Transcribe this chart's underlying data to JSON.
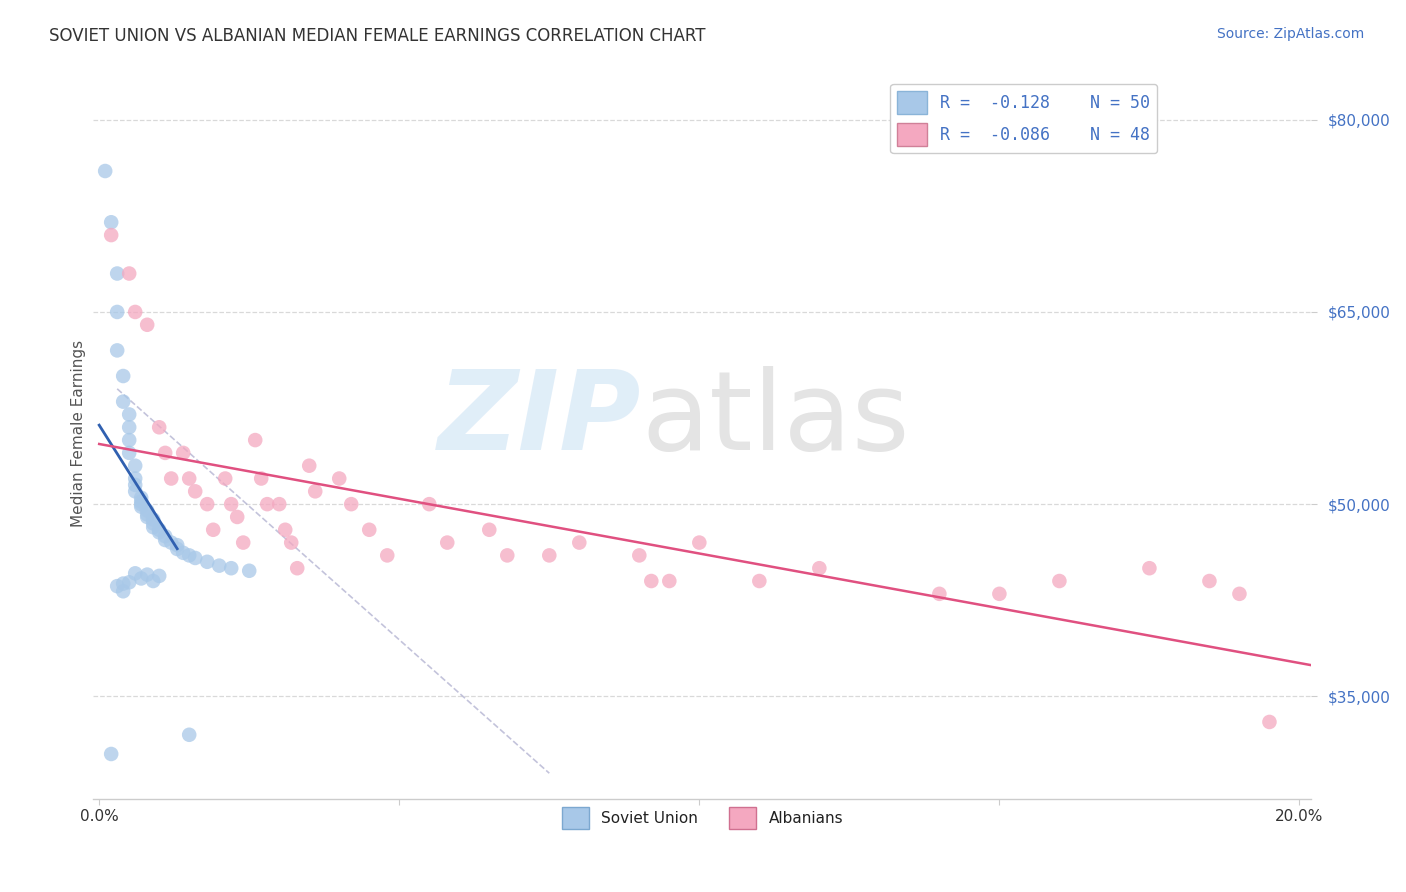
{
  "title": "SOVIET UNION VS ALBANIAN MEDIAN FEMALE EARNINGS CORRELATION CHART",
  "source": "Source: ZipAtlas.com",
  "ylabel": "Median Female Earnings",
  "xlim": [
    -0.001,
    0.202
  ],
  "ylim": [
    27000,
    84000
  ],
  "yticks": [
    35000,
    50000,
    65000,
    80000
  ],
  "ytick_labels": [
    "$35,000",
    "$50,000",
    "$65,000",
    "$80,000"
  ],
  "xticks": [
    0.0,
    0.05,
    0.1,
    0.15,
    0.2
  ],
  "xtick_labels": [
    "0.0%",
    "",
    "",
    "",
    "20.0%"
  ],
  "legend_R": [
    "-0.128",
    "-0.086"
  ],
  "legend_N": [
    "50",
    "48"
  ],
  "soviet_color": "#a8c8e8",
  "albanian_color": "#f4a8c0",
  "soviet_line_color": "#3060b0",
  "albanian_line_color": "#e05080",
  "background_color": "#ffffff",
  "grid_color": "#d0d0d0",
  "soviet_x": [
    0.001,
    0.002,
    0.003,
    0.003,
    0.003,
    0.004,
    0.004,
    0.005,
    0.005,
    0.005,
    0.005,
    0.006,
    0.006,
    0.006,
    0.006,
    0.007,
    0.007,
    0.007,
    0.007,
    0.008,
    0.008,
    0.008,
    0.009,
    0.009,
    0.009,
    0.01,
    0.01,
    0.011,
    0.011,
    0.012,
    0.013,
    0.013,
    0.014,
    0.015,
    0.016,
    0.018,
    0.02,
    0.022,
    0.025,
    0.008,
    0.007,
    0.005,
    0.006,
    0.003,
    0.004,
    0.004,
    0.009,
    0.01,
    0.002,
    0.015
  ],
  "soviet_y": [
    76000,
    72000,
    68000,
    65000,
    62000,
    60000,
    58000,
    57000,
    56000,
    55000,
    54000,
    53000,
    52000,
    51500,
    51000,
    50500,
    50200,
    50000,
    49800,
    49500,
    49200,
    49000,
    48800,
    48500,
    48200,
    48000,
    47800,
    47500,
    47200,
    47000,
    46800,
    46500,
    46200,
    46000,
    45800,
    45500,
    45200,
    45000,
    44800,
    44500,
    44200,
    43900,
    44600,
    43600,
    43200,
    43800,
    44000,
    44400,
    30500,
    32000
  ],
  "albanian_x": [
    0.002,
    0.005,
    0.006,
    0.008,
    0.01,
    0.011,
    0.012,
    0.014,
    0.015,
    0.016,
    0.018,
    0.019,
    0.021,
    0.022,
    0.023,
    0.024,
    0.026,
    0.027,
    0.028,
    0.03,
    0.031,
    0.032,
    0.033,
    0.035,
    0.036,
    0.04,
    0.042,
    0.045,
    0.048,
    0.055,
    0.058,
    0.065,
    0.068,
    0.075,
    0.08,
    0.09,
    0.092,
    0.095,
    0.1,
    0.11,
    0.12,
    0.14,
    0.15,
    0.16,
    0.175,
    0.185,
    0.19,
    0.195
  ],
  "albanian_y": [
    71000,
    68000,
    65000,
    64000,
    56000,
    54000,
    52000,
    54000,
    52000,
    51000,
    50000,
    48000,
    52000,
    50000,
    49000,
    47000,
    55000,
    52000,
    50000,
    50000,
    48000,
    47000,
    45000,
    53000,
    51000,
    52000,
    50000,
    48000,
    46000,
    50000,
    47000,
    48000,
    46000,
    46000,
    47000,
    46000,
    44000,
    44000,
    47000,
    44000,
    45000,
    43000,
    43000,
    44000,
    45000,
    44000,
    43000,
    33000
  ],
  "ref_line_x": [
    0.003,
    0.075
  ],
  "ref_line_y": [
    59000,
    29000
  ],
  "soviet_line_x": [
    0.0,
    0.012
  ],
  "albanian_line_x": [
    0.0,
    0.2
  ]
}
